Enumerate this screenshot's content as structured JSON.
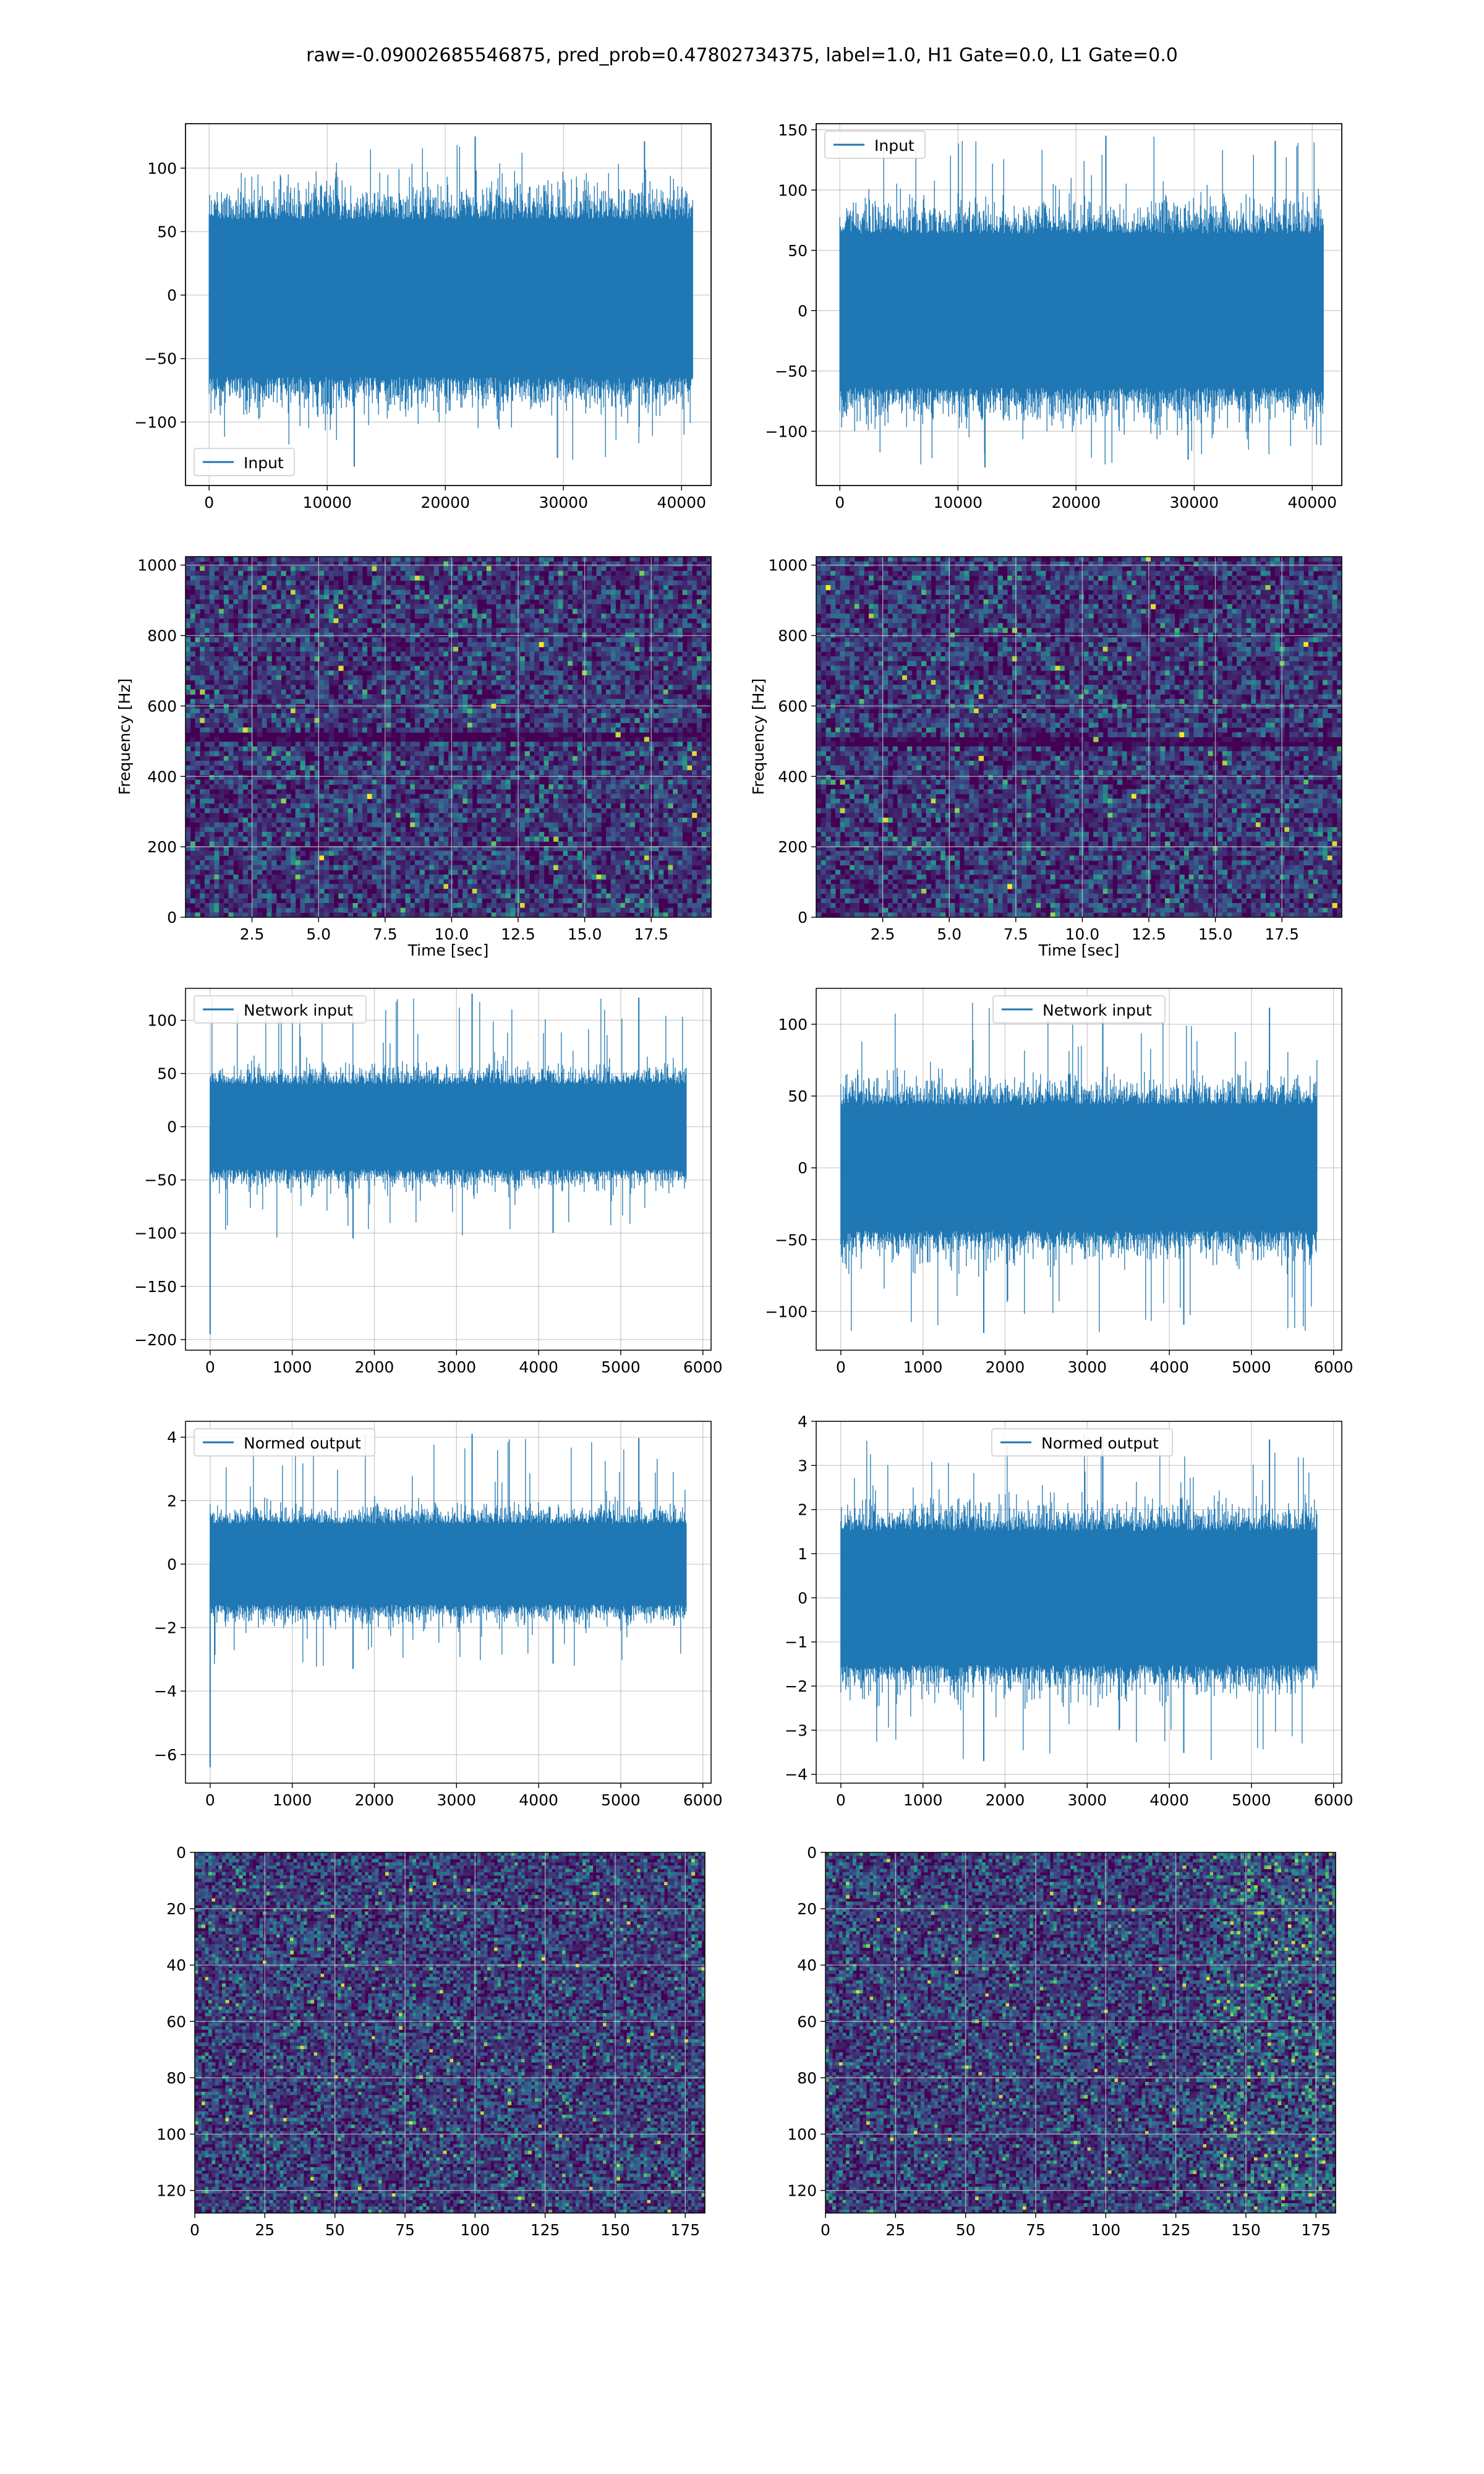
{
  "figure_title": "raw=-0.09002685546875, pred_prob=0.47802734375, label=1.0, H1 Gate=0.0, L1 Gate=0.0",
  "colors": {
    "line": "#1f77b4",
    "grid": "#b0b0b0",
    "viridis_low": "#440154",
    "viridis_mid": "#21918c",
    "viridis_high": "#fde725"
  },
  "chart_data": [
    {
      "id": "input-h1",
      "type": "line",
      "legend": [
        "Input"
      ],
      "legend_loc": "lower-left",
      "xlim": [
        -2000,
        42500
      ],
      "ylim": [
        -150,
        135
      ],
      "xticks": [
        0,
        10000,
        20000,
        30000,
        40000
      ],
      "yticks": [
        -100,
        -50,
        0,
        50,
        100
      ],
      "x_range": [
        0,
        40960
      ],
      "band": [
        -80,
        75
      ],
      "spike_max": 125,
      "spike_min": -135,
      "grid": true
    },
    {
      "id": "input-l1",
      "type": "line",
      "legend": [
        "Input"
      ],
      "legend_loc": "upper-left",
      "xlim": [
        -2000,
        42500
      ],
      "ylim": [
        -145,
        155
      ],
      "xticks": [
        0,
        10000,
        20000,
        30000,
        40000
      ],
      "yticks": [
        -100,
        -50,
        0,
        50,
        100,
        150
      ],
      "x_range": [
        0,
        40960
      ],
      "band": [
        -80,
        80
      ],
      "spike_max": 145,
      "spike_min": -130,
      "grid": true
    },
    {
      "id": "spectrogram-h1",
      "type": "heatmap",
      "colormap": "viridis",
      "xlabel": "Time [sec]",
      "ylabel": "Frequency [Hz]",
      "xlim": [
        0,
        19.75
      ],
      "ylim": [
        0,
        1024
      ],
      "xticks": [
        2.5,
        5.0,
        7.5,
        10.0,
        12.5,
        15.0,
        17.5
      ],
      "yticks": [
        0,
        200,
        400,
        600,
        800,
        1000
      ],
      "low_freq_band": [
        500,
        520
      ],
      "grid": true
    },
    {
      "id": "spectrogram-l1",
      "type": "heatmap",
      "colormap": "viridis",
      "xlabel": "Time [sec]",
      "ylabel": "Frequency [Hz]",
      "xlim": [
        0,
        19.75
      ],
      "ylim": [
        0,
        1024
      ],
      "xticks": [
        2.5,
        5.0,
        7.5,
        10.0,
        12.5,
        15.0,
        17.5
      ],
      "yticks": [
        0,
        200,
        400,
        600,
        800,
        1000
      ],
      "low_freq_band": [
        490,
        510
      ],
      "grid": true
    },
    {
      "id": "network-input-h1",
      "type": "line",
      "legend": [
        "Network input"
      ],
      "legend_loc": "upper-left",
      "xlim": [
        -300,
        6100
      ],
      "ylim": [
        -210,
        130
      ],
      "xticks": [
        0,
        1000,
        2000,
        3000,
        4000,
        5000,
        6000
      ],
      "yticks": [
        -200,
        -150,
        -100,
        -50,
        0,
        50,
        100
      ],
      "x_range": [
        0,
        5800
      ],
      "band": [
        -50,
        50
      ],
      "spike_max": 125,
      "spike_min": -105,
      "initial_spike": -195,
      "grid": true
    },
    {
      "id": "network-input-l1",
      "type": "line",
      "legend": [
        "Network input"
      ],
      "legend_loc": "upper-center",
      "xlim": [
        -300,
        6100
      ],
      "ylim": [
        -127,
        125
      ],
      "xticks": [
        0,
        1000,
        2000,
        3000,
        4000,
        5000,
        6000
      ],
      "yticks": [
        -100,
        -50,
        0,
        50,
        100
      ],
      "x_range": [
        0,
        5800
      ],
      "band": [
        -55,
        55
      ],
      "spike_max": 115,
      "spike_min": -115,
      "grid": true
    },
    {
      "id": "normed-output-h1",
      "type": "line",
      "legend": [
        "Normed output"
      ],
      "legend_loc": "upper-left",
      "xlim": [
        -300,
        6100
      ],
      "ylim": [
        -6.9,
        4.5
      ],
      "xticks": [
        0,
        1000,
        2000,
        3000,
        4000,
        5000,
        6000
      ],
      "yticks": [
        -6,
        -4,
        -2,
        0,
        2,
        4
      ],
      "x_range": [
        0,
        5800
      ],
      "band": [
        -1.6,
        1.6
      ],
      "spike_max": 4.1,
      "spike_min": -3.3,
      "initial_spike": -6.4,
      "grid": true
    },
    {
      "id": "normed-output-l1",
      "type": "line",
      "legend": [
        "Normed output"
      ],
      "legend_loc": "upper-center",
      "xlim": [
        -300,
        6100
      ],
      "ylim": [
        -4.2,
        4.0
      ],
      "xticks": [
        0,
        1000,
        2000,
        3000,
        4000,
        5000,
        6000
      ],
      "yticks": [
        -4,
        -3,
        -2,
        -1,
        0,
        1,
        2,
        3,
        4
      ],
      "x_range": [
        0,
        5800
      ],
      "band": [
        -1.9,
        1.9
      ],
      "spike_max": 3.7,
      "spike_min": -3.7,
      "grid": true
    },
    {
      "id": "qtransform-h1",
      "type": "heatmap",
      "colormap": "viridis",
      "xlim": [
        0,
        182
      ],
      "ylim": [
        128,
        0
      ],
      "xticks": [
        0,
        25,
        50,
        75,
        100,
        125,
        150,
        175
      ],
      "yticks": [
        0,
        20,
        40,
        60,
        80,
        100,
        120
      ],
      "grid": true
    },
    {
      "id": "qtransform-l1",
      "type": "heatmap",
      "colormap": "viridis",
      "xlim": [
        0,
        182
      ],
      "ylim": [
        128,
        0
      ],
      "xticks": [
        0,
        25,
        50,
        75,
        100,
        125,
        150,
        175
      ],
      "yticks": [
        0,
        20,
        40,
        60,
        80,
        100,
        120
      ],
      "grid": true
    }
  ]
}
